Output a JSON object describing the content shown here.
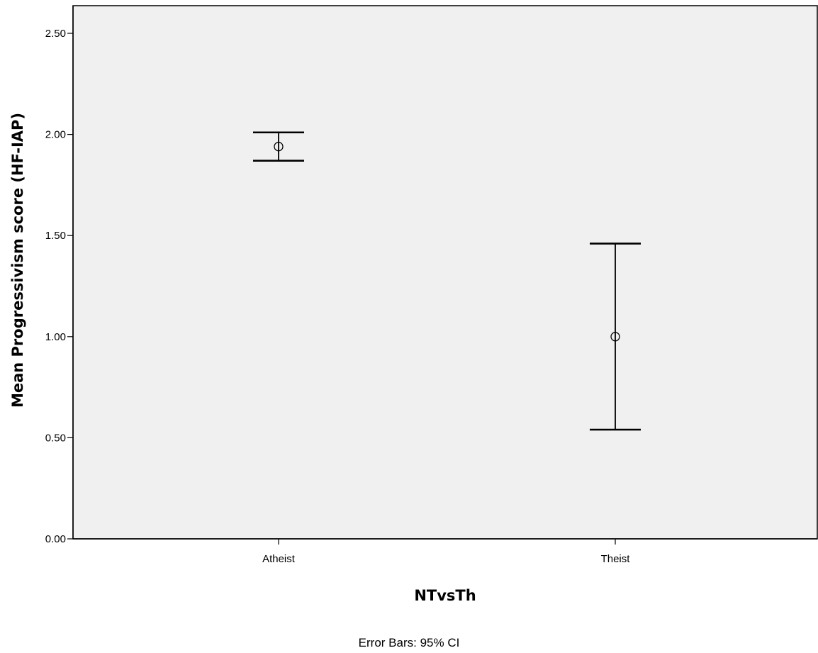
{
  "chart_data": {
    "type": "scatter",
    "title": "",
    "xlabel": "NTvsTh",
    "ylabel": "Mean Progressivism score (HF-IAP)",
    "categories": [
      "Atheist",
      "Theist"
    ],
    "means": [
      1.94,
      1.0
    ],
    "ci_lower": [
      1.87,
      0.54
    ],
    "ci_upper": [
      2.01,
      1.46
    ],
    "ylim": [
      0.0,
      2.5
    ],
    "yticks": [
      "0.00",
      "0.50",
      "1.00",
      "1.50",
      "2.00",
      "2.50"
    ],
    "grid": false,
    "legend": "none",
    "footnote": "Error Bars: 95% CI"
  },
  "colors": {
    "plot_background": "#f0f0f0",
    "page_background": "#ffffff",
    "marks": "#000000"
  }
}
